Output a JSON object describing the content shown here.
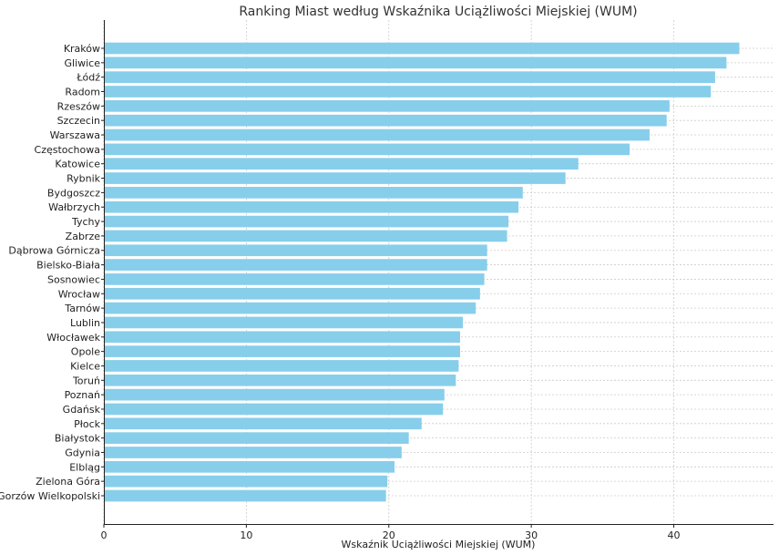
{
  "chart_data": {
    "type": "bar",
    "orientation": "horizontal",
    "title": "Ranking Miast według Wskaźnika Uciążliwości Miejskiej (WUM)",
    "xlabel": "Wskaźnik Uciążliwości Miejskiej (WUM)",
    "ylabel": "",
    "xlim": [
      0,
      47
    ],
    "xticks": [
      0,
      10,
      20,
      30,
      40
    ],
    "grid": true,
    "bar_color": "#87ceeb",
    "categories": [
      "Kraków",
      "Gliwice",
      "Łódź",
      "Radom",
      "Rzeszów",
      "Szczecin",
      "Warszawa",
      "Częstochowa",
      "Katowice",
      "Rybnik",
      "Bydgoszcz",
      "Wałbrzych",
      "Tychy",
      "Zabrze",
      "Dąbrowa Górnicza",
      "Bielsko-Biała",
      "Sosnowiec",
      "Wrocław",
      "Tarnów",
      "Lublin",
      "Włocławek",
      "Opole",
      "Kielce",
      "Toruń",
      "Poznań",
      "Gdańsk",
      "Płock",
      "Białystok",
      "Gdynia",
      "Elbląg",
      "Zielona Góra",
      "Gorzów Wielkopolski"
    ],
    "values": [
      44.6,
      43.7,
      42.9,
      42.6,
      39.7,
      39.5,
      38.3,
      36.9,
      33.3,
      32.4,
      29.4,
      29.1,
      28.4,
      28.3,
      26.9,
      26.9,
      26.7,
      26.4,
      26.1,
      25.2,
      25.0,
      25.0,
      24.9,
      24.7,
      23.9,
      23.8,
      22.3,
      21.4,
      20.9,
      20.4,
      19.9,
      19.8
    ]
  }
}
